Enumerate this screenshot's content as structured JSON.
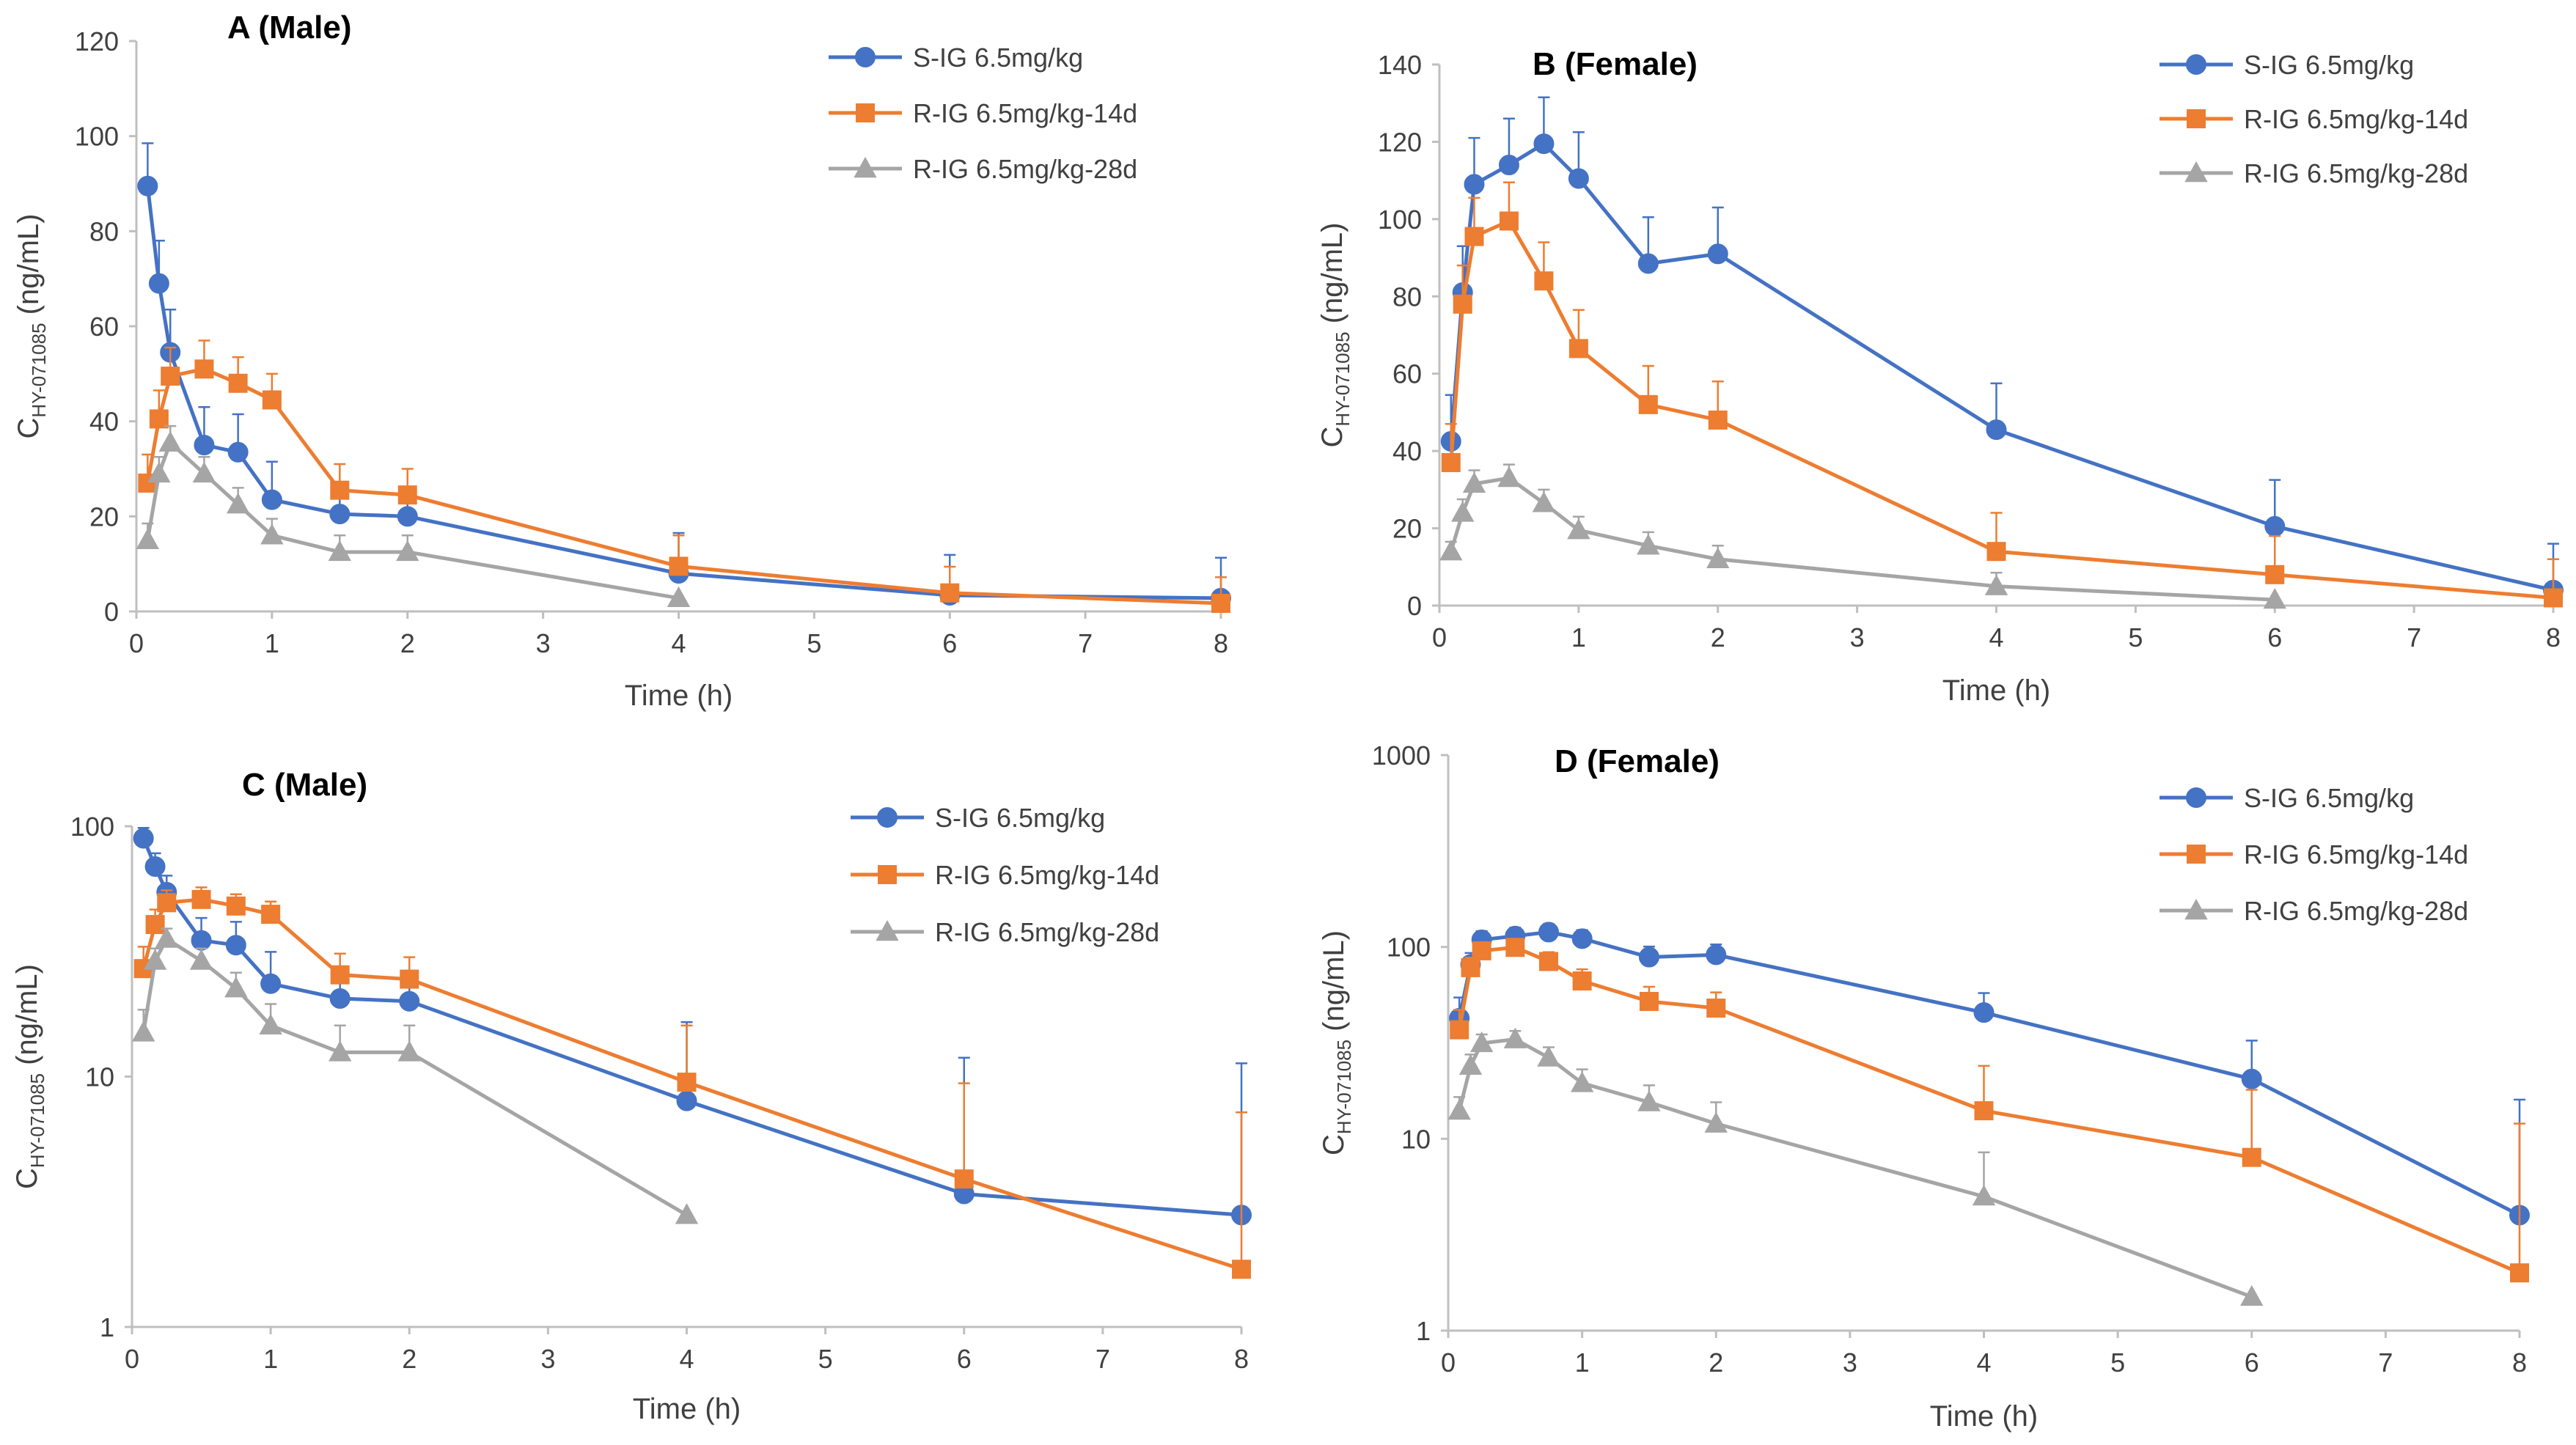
{
  "colors": {
    "s_ig": "#4472C4",
    "r_ig_14d": "#ED7D31",
    "r_ig_28d": "#A5A5A5",
    "axis": "#BFBFBF",
    "text": "#404040"
  },
  "chart_data": [
    {
      "id": "A",
      "type": "line",
      "title": "A (Male)",
      "xlabel": "Time (h)",
      "ylabel_main": "C",
      "ylabel_sub": "HY-071085",
      "ylabel_unit": " (ng/mL)",
      "yscale": "linear",
      "xlim": [
        0,
        8
      ],
      "ylim": [
        0,
        120
      ],
      "xticks": [
        0,
        1,
        2,
        3,
        4,
        5,
        6,
        7,
        8
      ],
      "xtick_labels": [
        "0",
        "1",
        "2",
        "3",
        "4",
        "5",
        "6",
        "7",
        "8"
      ],
      "yticks": [
        0,
        20,
        40,
        60,
        80,
        100,
        120
      ],
      "ytick_labels": [
        "0",
        "20",
        "40",
        "60",
        "80",
        "100",
        "120"
      ],
      "series": [
        {
          "name": "S-IG 6.5mg/kg",
          "key": "s_ig",
          "marker": "circle",
          "x": [
            0.083,
            0.167,
            0.25,
            0.5,
            0.75,
            1,
            1.5,
            2,
            4,
            6,
            8
          ],
          "y": [
            89.5,
            69,
            54.5,
            35,
            33.5,
            23.5,
            20.5,
            20,
            8,
            3.4,
            2.8
          ],
          "err": [
            9,
            9,
            9,
            8,
            8,
            8,
            4,
            4,
            8.5,
            8.5,
            8.5
          ]
        },
        {
          "name": "R-IG 6.5mg/kg-14d",
          "key": "r_ig_14d",
          "marker": "square",
          "x": [
            0.083,
            0.167,
            0.25,
            0.5,
            0.75,
            1,
            1.5,
            2,
            4,
            6,
            8
          ],
          "y": [
            27,
            40.5,
            49.5,
            51,
            48,
            44.5,
            25.5,
            24.5,
            9.5,
            3.9,
            1.7
          ],
          "err": [
            6,
            6,
            6,
            6,
            5.5,
            5.5,
            5.5,
            5.5,
            6.5,
            5.5,
            5.5
          ]
        },
        {
          "name": "R-IG 6.5mg/kg-28d",
          "key": "r_ig_28d",
          "marker": "triangle",
          "x": [
            0.083,
            0.167,
            0.25,
            0.5,
            0.75,
            1,
            1.5,
            2,
            4
          ],
          "y": [
            15,
            29,
            35.5,
            29,
            22.5,
            16,
            12.5,
            12.5,
            2.8
          ],
          "err": [
            3.5,
            3.5,
            3.5,
            3.5,
            3.5,
            3.5,
            3.5,
            3.5,
            0
          ]
        }
      ]
    },
    {
      "id": "B",
      "type": "line",
      "title": "B (Female)",
      "xlabel": "Time (h)",
      "ylabel_main": "C",
      "ylabel_sub": "HY-071085",
      "ylabel_unit": " (ng/mL)",
      "yscale": "linear",
      "xlim": [
        0,
        8
      ],
      "ylim": [
        0,
        140
      ],
      "xticks": [
        0,
        1,
        2,
        3,
        4,
        5,
        6,
        7,
        8
      ],
      "xtick_labels": [
        "0",
        "1",
        "2",
        "3",
        "4",
        "5",
        "6",
        "7",
        "8"
      ],
      "yticks": [
        0,
        20,
        40,
        60,
        80,
        100,
        120,
        140
      ],
      "ytick_labels": [
        "0",
        "20",
        "40",
        "60",
        "80",
        "100",
        "120",
        "140"
      ],
      "series": [
        {
          "name": "S-IG 6.5mg/kg",
          "key": "s_ig",
          "marker": "circle",
          "x": [
            0.083,
            0.167,
            0.25,
            0.5,
            0.75,
            1,
            1.5,
            2,
            4,
            6,
            8
          ],
          "y": [
            42.5,
            81,
            109,
            114,
            119.5,
            110.5,
            88.5,
            91,
            45.5,
            20.5,
            4
          ],
          "err": [
            12,
            12,
            12,
            12,
            12,
            12,
            12,
            12,
            12,
            12,
            12
          ]
        },
        {
          "name": "R-IG 6.5mg/kg-14d",
          "key": "r_ig_14d",
          "marker": "square",
          "x": [
            0.083,
            0.167,
            0.25,
            0.5,
            0.75,
            1,
            1.5,
            2,
            4,
            6,
            8
          ],
          "y": [
            37,
            78,
            95.5,
            99.5,
            84,
            66.5,
            52,
            48,
            14,
            8,
            2
          ],
          "err": [
            10,
            10,
            10,
            10,
            10,
            10,
            10,
            10,
            10,
            10,
            10
          ]
        },
        {
          "name": "R-IG 6.5mg/kg-28d",
          "key": "r_ig_28d",
          "marker": "triangle",
          "x": [
            0.083,
            0.167,
            0.25,
            0.5,
            0.75,
            1,
            1.5,
            2,
            4,
            6
          ],
          "y": [
            14,
            24,
            31.5,
            33,
            26.5,
            19.5,
            15.5,
            12,
            5,
            1.5
          ],
          "err": [
            2.5,
            3.5,
            3.5,
            3.5,
            3.5,
            3.5,
            3.5,
            3.5,
            3.5,
            0
          ]
        }
      ]
    },
    {
      "id": "C",
      "type": "line",
      "title": "C (Male)",
      "xlabel": "Time (h)",
      "ylabel_main": "C",
      "ylabel_sub": "HY-071085",
      "ylabel_unit": " (ng/mL)",
      "yscale": "log",
      "xlim": [
        0,
        8
      ],
      "ylim": [
        1,
        100
      ],
      "xticks": [
        0,
        1,
        2,
        3,
        4,
        5,
        6,
        7,
        8
      ],
      "xtick_labels": [
        "0",
        "1",
        "2",
        "3",
        "4",
        "5",
        "6",
        "7",
        "8"
      ],
      "yticks": [
        1,
        10,
        100
      ],
      "ytick_labels": [
        "1",
        "10",
        "100"
      ],
      "series": [
        {
          "name": "S-IG 6.5mg/kg",
          "key": "s_ig",
          "marker": "circle",
          "x": [
            0.083,
            0.167,
            0.25,
            0.5,
            0.75,
            1,
            1.5,
            2,
            4,
            6,
            8
          ],
          "y": [
            89.5,
            69,
            54.5,
            35,
            33.5,
            23.5,
            20.5,
            20,
            8,
            3.4,
            2.8
          ],
          "err": [
            9,
            9,
            9,
            8,
            8,
            8,
            4,
            4,
            8.5,
            8.5,
            8.5
          ]
        },
        {
          "name": "R-IG 6.5mg/kg-14d",
          "key": "r_ig_14d",
          "marker": "square",
          "x": [
            0.083,
            0.167,
            0.25,
            0.5,
            0.75,
            1,
            1.5,
            2,
            4,
            6,
            8
          ],
          "y": [
            27,
            40.5,
            49.5,
            51,
            48,
            44.5,
            25.5,
            24.5,
            9.5,
            3.9,
            1.7
          ],
          "err": [
            6,
            6,
            6,
            6,
            5.5,
            5.5,
            5.5,
            5.5,
            6.5,
            5.5,
            5.5
          ]
        },
        {
          "name": "R-IG 6.5mg/kg-28d",
          "key": "r_ig_28d",
          "marker": "triangle",
          "x": [
            0.083,
            0.167,
            0.25,
            0.5,
            0.75,
            1,
            1.5,
            2,
            4
          ],
          "y": [
            15,
            29,
            35.5,
            29,
            22.5,
            16,
            12.5,
            12.5,
            2.8
          ],
          "err": [
            3.5,
            3.5,
            3.5,
            3.5,
            3.5,
            3.5,
            3.5,
            3.5,
            0
          ]
        }
      ]
    },
    {
      "id": "D",
      "type": "line",
      "title": "D (Female)",
      "xlabel": "Time (h)",
      "ylabel_main": "C",
      "ylabel_sub": "HY-071085",
      "ylabel_unit": " (ng/mL)",
      "yscale": "log",
      "xlim": [
        0,
        8
      ],
      "ylim": [
        1,
        1000
      ],
      "xticks": [
        0,
        1,
        2,
        3,
        4,
        5,
        6,
        7,
        8
      ],
      "xtick_labels": [
        "0",
        "1",
        "2",
        "3",
        "4",
        "5",
        "6",
        "7",
        "8"
      ],
      "yticks": [
        1,
        10,
        100,
        1000
      ],
      "ytick_labels": [
        "1",
        "10",
        "100",
        "1000"
      ],
      "series": [
        {
          "name": "S-IG 6.5mg/kg",
          "key": "s_ig",
          "marker": "circle",
          "x": [
            0.083,
            0.167,
            0.25,
            0.5,
            0.75,
            1,
            1.5,
            2,
            4,
            6,
            8
          ],
          "y": [
            42.5,
            81,
            109,
            114,
            119.5,
            110.5,
            88.5,
            91,
            45.5,
            20.5,
            4
          ],
          "err": [
            12,
            12,
            12,
            12,
            12,
            12,
            12,
            12,
            12,
            12,
            12
          ]
        },
        {
          "name": "R-IG 6.5mg/kg-14d",
          "key": "r_ig_14d",
          "marker": "square",
          "x": [
            0.083,
            0.167,
            0.25,
            0.5,
            0.75,
            1,
            1.5,
            2,
            4,
            6,
            8
          ],
          "y": [
            37,
            78,
            95.5,
            99.5,
            84,
            66.5,
            52,
            48,
            14,
            8,
            2
          ],
          "err": [
            10,
            10,
            10,
            10,
            10,
            10,
            10,
            10,
            10,
            10,
            10
          ]
        },
        {
          "name": "R-IG 6.5mg/kg-28d",
          "key": "r_ig_28d",
          "marker": "triangle",
          "x": [
            0.083,
            0.167,
            0.25,
            0.5,
            0.75,
            1,
            1.5,
            2,
            4,
            6
          ],
          "y": [
            14,
            24,
            31.5,
            33,
            26.5,
            19.5,
            15.5,
            12,
            5,
            1.5
          ],
          "err": [
            2.5,
            3.5,
            3.5,
            3.5,
            3.5,
            3.5,
            3.5,
            3.5,
            3.5,
            0
          ]
        }
      ]
    }
  ]
}
